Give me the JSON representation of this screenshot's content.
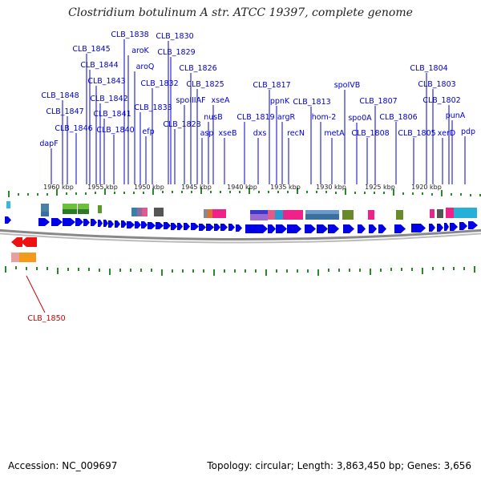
{
  "title": "Clostridium botulinum A str. ATCC 19397, complete genome",
  "footer": {
    "accession": "Accession: NC_009697",
    "summary": "Topology: circular; Length: 3,863,450 bp; Genes: 3,656"
  },
  "colors": {
    "gene_label": "#0000cc",
    "highlight_label": "#cc0000",
    "gene_arrow": "#0000e6",
    "tick": "#2a8a2a",
    "backbone": "#888888"
  },
  "scale_labels": [
    "1960 kbp",
    "1955 kbp",
    "1950 kbp",
    "1945 kbp",
    "1940 kbp",
    "1935 kbp",
    "1930 kbp",
    "1925 kbp",
    "1920 kbp"
  ],
  "gene_labels": [
    "dapF",
    "CLB_1848",
    "CLB_1847",
    "CLB_1846",
    "CLB_1845",
    "CLB_1844",
    "CLB_1843",
    "CLB_1842",
    "CLB_1841",
    "CLB_1840",
    "CLB_1838",
    "aroK",
    "aroQ",
    "CLB_1833",
    "efp",
    "CLB_1832",
    "CLB_1830",
    "CLB_1829",
    "CLB_1828",
    "spoIIIAF",
    "CLB_1826",
    "CLB_1825",
    "asp",
    "nusB",
    "xseA",
    "xseB",
    "CLB_1819",
    "dxs",
    "CLB_1817",
    "ppnK",
    "argR",
    "recN",
    "CLB_1813",
    "hom-2",
    "metA",
    "spoIVB",
    "spo0A",
    "CLB_1808",
    "CLB_1807",
    "CLB_1806",
    "CLB_1805",
    "CLB_1804",
    "CLB_1803",
    "xerD",
    "CLB_1802",
    "punA",
    "pdp"
  ],
  "highlight_label": "CLB_1850"
}
